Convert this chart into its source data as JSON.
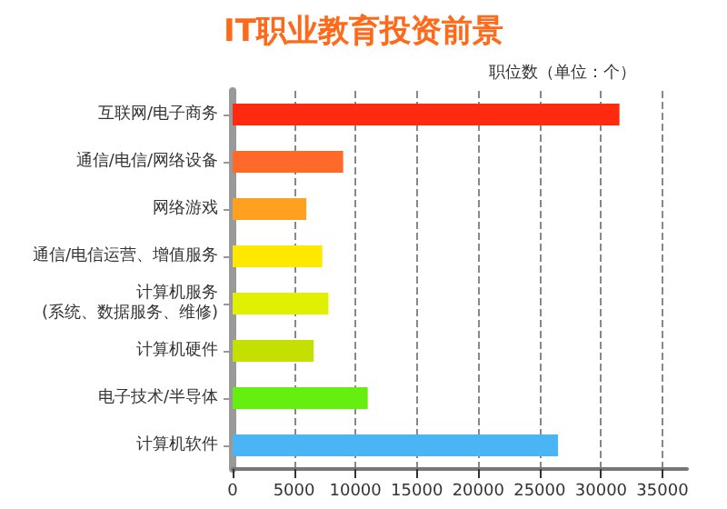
{
  "chart_data": {
    "type": "bar",
    "orientation": "horizontal",
    "title": "IT职业教育投资前景",
    "annotations": [
      "职位数（单位：个）"
    ],
    "categories": [
      "互联网/电子商务",
      "通信/电信/网络设备",
      "网络游戏",
      "通信/电信运营、增值服务",
      "计算机服务\n(系统、数据服务、维修)",
      "计算机硬件",
      "电子技术/半导体",
      "计算机软件"
    ],
    "values": [
      31500,
      9000,
      6000,
      7300,
      7800,
      6600,
      11000,
      26500
    ],
    "colors": [
      "#ff2a10",
      "#ff6a2a",
      "#ffa020",
      "#ffe800",
      "#e0f000",
      "#c4e000",
      "#66ee11",
      "#4ab4f4"
    ],
    "xlim": [
      0,
      37000
    ],
    "xticks": [
      0,
      5000,
      10000,
      15000,
      20000,
      25000,
      30000,
      35000
    ],
    "grid": "x"
  }
}
